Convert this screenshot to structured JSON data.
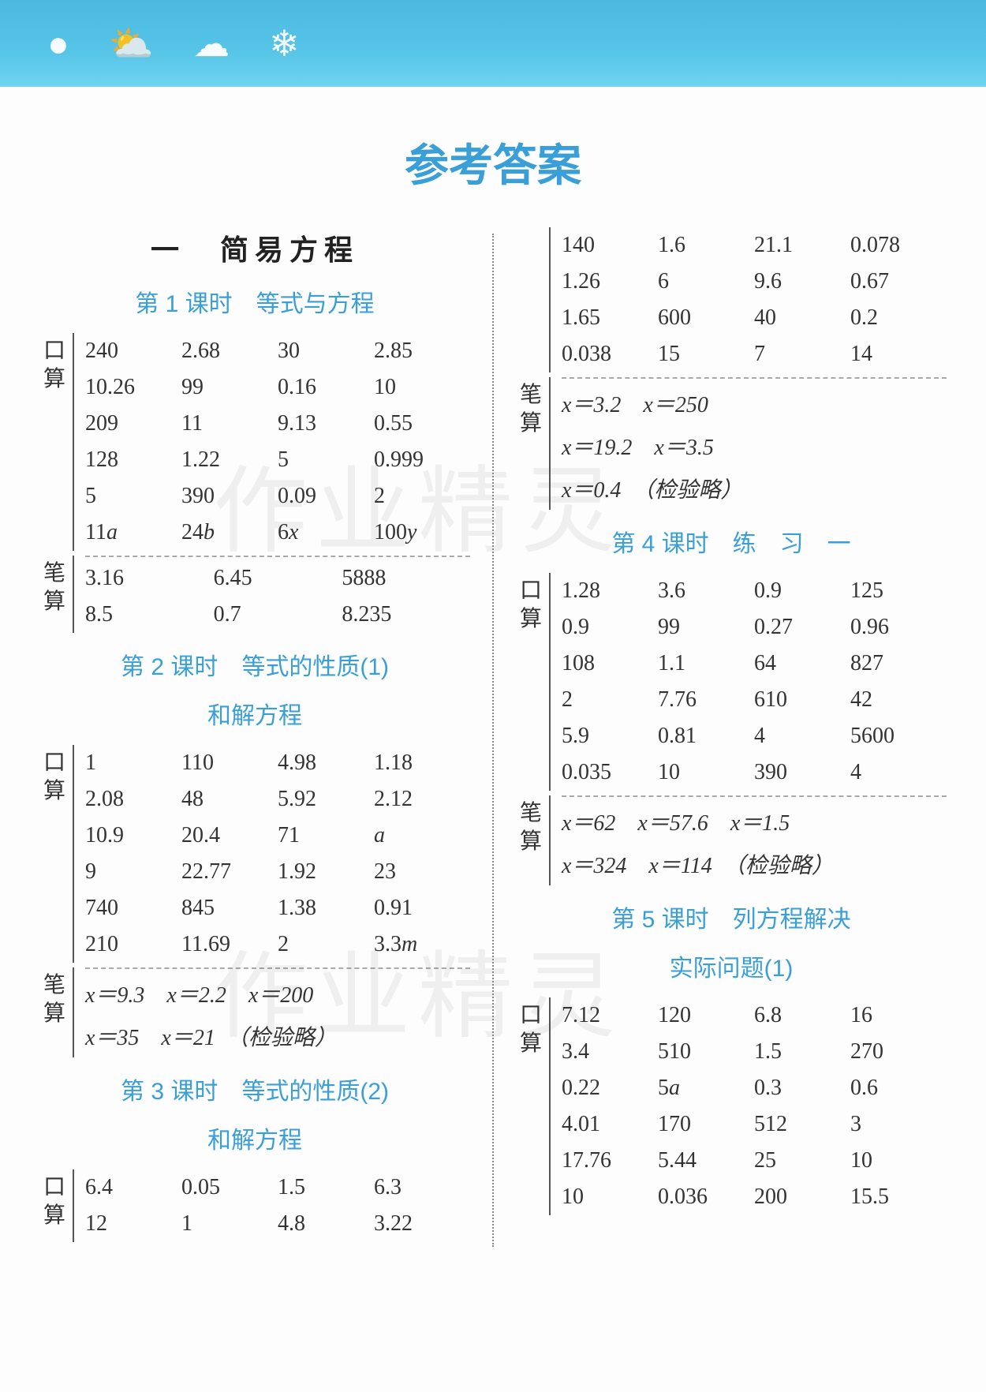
{
  "page": {
    "main_title": "参考答案",
    "section1_title": "一　简易方程",
    "watermark": "作业精灵"
  },
  "left": {
    "lesson1": {
      "title": "第 1 课时　等式与方程",
      "kou_label1": "口",
      "kou_label2": "算",
      "bi_label1": "笔",
      "bi_label2": "算",
      "kou_rows": [
        [
          "240",
          "2.68",
          "30",
          "2.85"
        ],
        [
          "10.26",
          "99",
          "0.16",
          "10"
        ],
        [
          "209",
          "11",
          "9.13",
          "0.55"
        ],
        [
          "128",
          "1.22",
          "5",
          "0.999"
        ],
        [
          "5",
          "390",
          "0.09",
          "2"
        ],
        [
          "11a",
          "24b",
          "6x",
          "100y"
        ]
      ],
      "bi_rows": [
        [
          "3.16",
          "6.45",
          "5888"
        ],
        [
          "8.5",
          "0.7",
          "8.235"
        ]
      ]
    },
    "lesson2": {
      "title": "第 2 课时　等式的性质(1)",
      "title_sub": "和解方程",
      "kou_rows": [
        [
          "1",
          "110",
          "4.98",
          "1.18"
        ],
        [
          "2.08",
          "48",
          "5.92",
          "2.12"
        ],
        [
          "10.9",
          "20.4",
          "71",
          "a"
        ],
        [
          "9",
          "22.77",
          "1.92",
          "23"
        ],
        [
          "740",
          "845",
          "1.38",
          "0.91"
        ],
        [
          "210",
          "11.69",
          "2",
          "3.3m"
        ]
      ],
      "bi_line1": "x＝9.3　x＝2.2　x＝200",
      "bi_line2": "x＝35　x＝21　（检验略）"
    },
    "lesson3": {
      "title": "第 3 课时　等式的性质(2)",
      "title_sub": "和解方程",
      "kou_rows": [
        [
          "6.4",
          "0.05",
          "1.5",
          "6.3"
        ],
        [
          "12",
          "1",
          "4.8",
          "3.22"
        ]
      ]
    }
  },
  "right": {
    "lesson3_cont": {
      "kou_rows": [
        [
          "140",
          "1.6",
          "21.1",
          "0.078"
        ],
        [
          "1.26",
          "6",
          "9.6",
          "0.67"
        ],
        [
          "1.65",
          "600",
          "40",
          "0.2"
        ],
        [
          "0.038",
          "15",
          "7",
          "14"
        ]
      ],
      "bi_line1": "x＝3.2　x＝250",
      "bi_line2": "x＝19.2　x＝3.5",
      "bi_line3": "x＝0.4　（检验略）"
    },
    "lesson4": {
      "title": "第 4 课时　练　习　一",
      "kou_rows": [
        [
          "1.28",
          "3.6",
          "0.9",
          "125"
        ],
        [
          "0.9",
          "99",
          "0.27",
          "0.96"
        ],
        [
          "108",
          "1.1",
          "64",
          "827"
        ],
        [
          "2",
          "7.76",
          "610",
          "42"
        ],
        [
          "5.9",
          "0.81",
          "4",
          "5600"
        ],
        [
          "0.035",
          "10",
          "390",
          "4"
        ]
      ],
      "bi_line1": "x＝62　x＝57.6　x＝1.5",
      "bi_line2": "x＝324　x＝114　（检验略）"
    },
    "lesson5": {
      "title": "第 5 课时　列方程解决",
      "title_sub": "实际问题(1)",
      "kou_rows": [
        [
          "7.12",
          "120",
          "6.8",
          "16"
        ],
        [
          "3.4",
          "510",
          "1.5",
          "270"
        ],
        [
          "0.22",
          "5a",
          "0.3",
          "0.6"
        ],
        [
          "4.01",
          "170",
          "512",
          "3"
        ],
        [
          "17.76",
          "5.44",
          "25",
          "10"
        ],
        [
          "10",
          "0.036",
          "200",
          "15.5"
        ]
      ]
    }
  },
  "labels": {
    "kou1": "口",
    "kou2": "算",
    "bi1": "笔",
    "bi2": "算"
  }
}
